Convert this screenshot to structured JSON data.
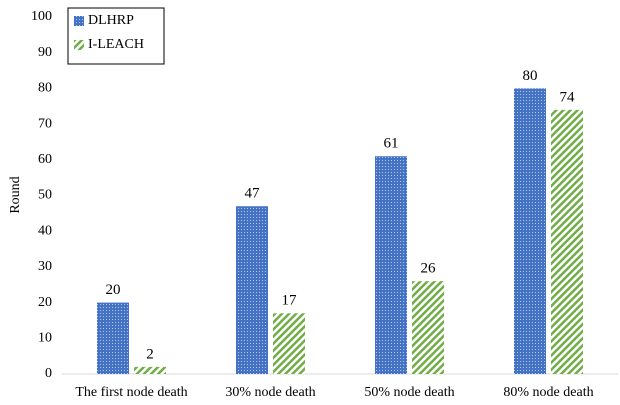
{
  "chart_data": {
    "type": "bar",
    "y_label": "Round",
    "categories": [
      "The first node death",
      "30% node death",
      "50% node death",
      "80% node death"
    ],
    "series": [
      {
        "name": "DLHRP",
        "color": "#4472c4",
        "values": [
          20,
          47,
          61,
          80
        ]
      },
      {
        "name": "I-LEACH",
        "color": "#70ad47",
        "values": [
          2,
          17,
          26,
          74
        ]
      }
    ],
    "ylim": [
      0,
      100
    ],
    "yticks": [
      0,
      10,
      20,
      30,
      40,
      50,
      60,
      70,
      80,
      90,
      100
    ],
    "grid": false,
    "legend": "top-left",
    "data_labels": true
  }
}
